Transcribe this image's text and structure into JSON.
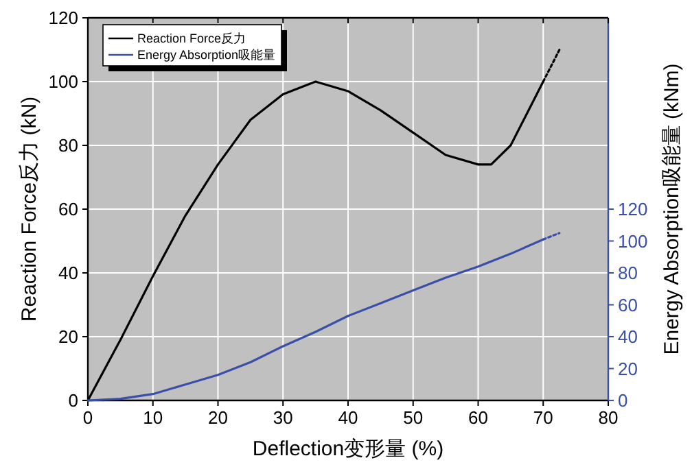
{
  "chart_data": {
    "type": "line",
    "xlabel": "Deflection变形量 (%)",
    "ylabel": "Reaction Force反力 (kN)",
    "y2label": "Energy Absorption吸能量 (kNm)",
    "xlim": [
      0,
      80
    ],
    "xticks": [
      0,
      10,
      20,
      30,
      40,
      50,
      60,
      70,
      80
    ],
    "ylim": [
      0,
      120
    ],
    "yticks": [
      0,
      20,
      40,
      60,
      80,
      100,
      120
    ],
    "y2lim": [
      0,
      240
    ],
    "y2ticks": [
      0,
      20,
      40,
      60,
      80,
      100,
      120
    ],
    "grid": true,
    "legend": "top left",
    "series": [
      {
        "name": "Reaction Force反力",
        "color": "#000000",
        "x": [
          0,
          5,
          10,
          15,
          20,
          25,
          30,
          35,
          40,
          45,
          50,
          55,
          60,
          62,
          65,
          68,
          70
        ],
        "values": [
          0,
          19,
          39,
          58,
          74,
          88,
          96,
          100,
          97,
          91,
          84,
          77,
          74,
          74,
          80,
          92,
          100
        ]
      },
      {
        "name": "Energy Absorption吸能量",
        "color": "#3a4fa8",
        "axis": "y2",
        "x": [
          0,
          5,
          10,
          15,
          20,
          25,
          30,
          35,
          40,
          45,
          50,
          55,
          60,
          65,
          70
        ],
        "values": [
          0,
          1,
          4,
          10,
          16,
          24,
          34,
          43,
          53,
          61,
          69,
          77,
          84,
          92,
          101
        ]
      },
      {
        "color": "#000000",
        "line_style": "dotted",
        "x": [
          70,
          72.5
        ],
        "values": [
          100,
          110
        ]
      },
      {
        "color": "#3a4fa8",
        "line_style": "dotted",
        "axis": "y2",
        "x": [
          70,
          72.5
        ],
        "values": [
          101,
          105
        ]
      }
    ]
  }
}
